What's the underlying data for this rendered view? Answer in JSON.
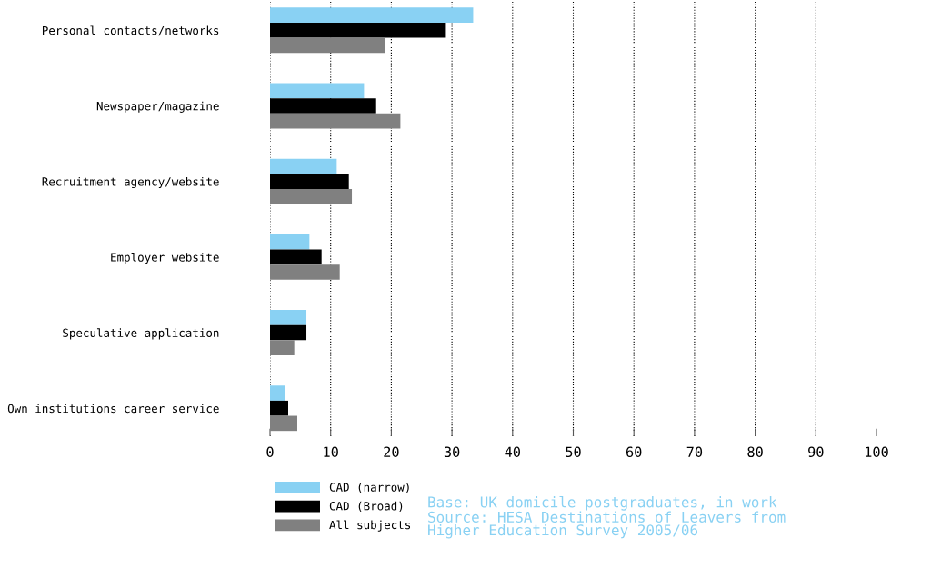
{
  "chart_data": {
    "type": "bar",
    "orientation": "horizontal",
    "categories": [
      "Personal contacts/networks",
      "Newspaper/magazine",
      "Recruitment agency/website",
      "Employer website",
      "Speculative application",
      "Own institutions career service"
    ],
    "series": [
      {
        "name": "CAD (narrow)",
        "color": "#89d1f3",
        "values": [
          33.5,
          15.5,
          11,
          6.5,
          6,
          2.5
        ]
      },
      {
        "name": "CAD (Broad)",
        "color": "#000000",
        "values": [
          29,
          17.5,
          13,
          8.5,
          6,
          3
        ]
      },
      {
        "name": "All subjects",
        "color": "#808080",
        "values": [
          19,
          21.5,
          13.5,
          11.5,
          4,
          4.5
        ]
      }
    ],
    "xlim": [
      0,
      100
    ],
    "xticks": [
      0,
      10,
      20,
      30,
      40,
      50,
      60,
      70,
      80,
      90,
      100
    ],
    "grid": "x",
    "legend": "bottom left",
    "annotations": [
      "Base: UK domicile postgraduates, in work",
      "Source: HESA Destinations of Leavers from\nHigher Education Survey 2005/06"
    ]
  }
}
